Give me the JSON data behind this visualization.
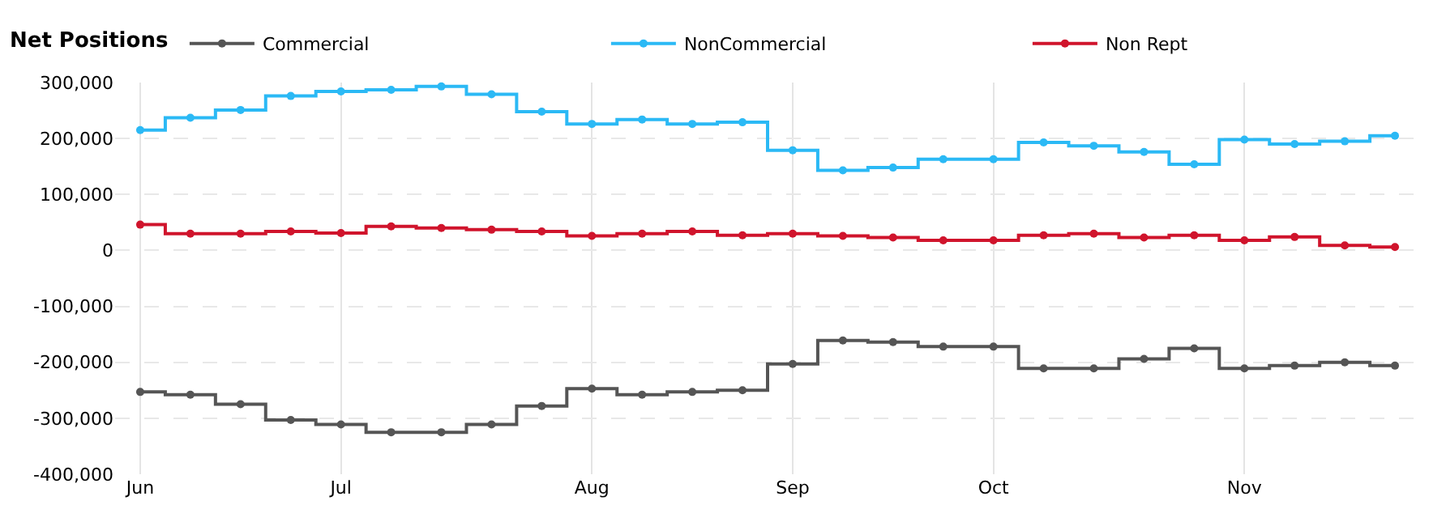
{
  "chart_data": {
    "type": "step",
    "legend_title": "Net Positions",
    "categories": [
      "Jun",
      null,
      null,
      null,
      "Jul",
      null,
      null,
      null,
      null,
      "Aug",
      null,
      null,
      null,
      "Sep",
      null,
      null,
      null,
      "Oct",
      null,
      null,
      null,
      null,
      "Nov",
      null,
      null,
      null
    ],
    "series": [
      {
        "name": "Commercial",
        "color": "#555555",
        "values": [
          -253000,
          -258000,
          -275000,
          -303000,
          -311000,
          -325000,
          -325000,
          -311000,
          -278000,
          -247000,
          -258000,
          -253000,
          -250000,
          -203000,
          -161000,
          -164000,
          -172000,
          -172000,
          -211000,
          -211000,
          -194000,
          -175000,
          -211000,
          -206000,
          -200000,
          -206000
        ]
      },
      {
        "name": "NonCommercial",
        "color": "#2bb9f5",
        "values": [
          215000,
          237000,
          251000,
          276000,
          284000,
          287000,
          293000,
          279000,
          248000,
          226000,
          234000,
          226000,
          229000,
          179000,
          143000,
          148000,
          163000,
          163000,
          193000,
          187000,
          176000,
          154000,
          198000,
          190000,
          195000,
          205000
        ]
      },
      {
        "name": "Non Rept",
        "color": "#d0142c",
        "values": [
          46000,
          30000,
          30000,
          34000,
          31000,
          43000,
          40000,
          37000,
          34000,
          26000,
          30000,
          34000,
          27000,
          30000,
          26000,
          23000,
          18000,
          18000,
          27000,
          30000,
          23000,
          27000,
          18000,
          24000,
          9000,
          6000
        ]
      }
    ],
    "ylim": [
      -400000,
      300000
    ],
    "yticks": [
      {
        "value": -400000,
        "label": "-400,000"
      },
      {
        "value": -300000,
        "label": "-300,000"
      },
      {
        "value": -200000,
        "label": "-200,000"
      },
      {
        "value": -100000,
        "label": "-100,000"
      },
      0,
      {
        "value": 100000,
        "label": "100,000"
      },
      {
        "value": 200000,
        "label": "200,000"
      },
      {
        "value": 300000,
        "label": "300,000"
      }
    ],
    "grid": true,
    "legend": "top left",
    "marker": "circle",
    "line_style": "solid"
  }
}
